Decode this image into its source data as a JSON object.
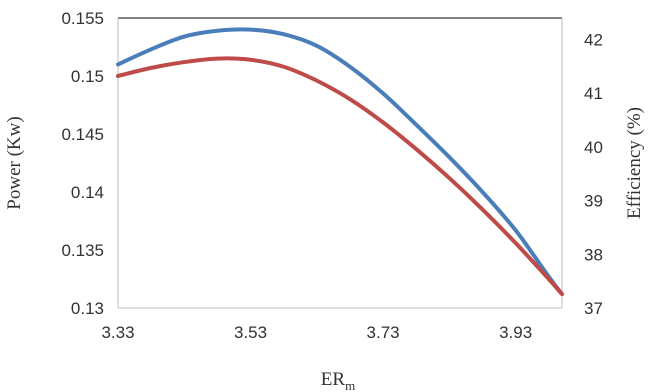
{
  "chart_data": {
    "type": "line",
    "title": "",
    "xlabel": "ER",
    "xlabel_subscript": "m",
    "ylabel": "Power (Kw)",
    "y2label": "Efficiency (%)",
    "xlim": [
      3.33,
      4.0
    ],
    "ylim": [
      0.13,
      0.155
    ],
    "y2lim": [
      37,
      42.4
    ],
    "xticks": [
      "3.33",
      "3.53",
      "3.73",
      "3.93"
    ],
    "xtick_values": [
      3.33,
      3.53,
      3.73,
      3.93
    ],
    "yticks": [
      "0.13",
      "0.135",
      "0.14",
      "0.145",
      "0.15",
      "0.155"
    ],
    "ytick_values": [
      0.13,
      0.135,
      0.14,
      0.145,
      0.15,
      0.155
    ],
    "y2ticks": [
      "37",
      "38",
      "39",
      "40",
      "41",
      "42"
    ],
    "y2tick_values": [
      37,
      38,
      39,
      40,
      41,
      42
    ],
    "grid": false,
    "legend": "none",
    "series": [
      {
        "axis": "left",
        "color": "#4a7ebb",
        "x": [
          3.33,
          3.38,
          3.43,
          3.48,
          3.53,
          3.58,
          3.63,
          3.68,
          3.73,
          3.78,
          3.83,
          3.88,
          3.93,
          3.98,
          4.0
        ],
        "y": [
          0.151,
          0.1523,
          0.1534,
          0.1539,
          0.154,
          0.1536,
          0.1526,
          0.1508,
          0.1485,
          0.1458,
          0.143,
          0.14,
          0.1367,
          0.1327,
          0.1312
        ]
      },
      {
        "axis": "left",
        "color": "#be4b48",
        "x": [
          3.33,
          3.38,
          3.43,
          3.48,
          3.53,
          3.58,
          3.63,
          3.68,
          3.73,
          3.78,
          3.83,
          3.88,
          3.93,
          3.98,
          4.0
        ],
        "y": [
          0.15,
          0.1507,
          0.1512,
          0.1515,
          0.1514,
          0.1508,
          0.1496,
          0.148,
          0.146,
          0.1437,
          0.1412,
          0.1385,
          0.1356,
          0.1325,
          0.1312
        ]
      }
    ]
  }
}
